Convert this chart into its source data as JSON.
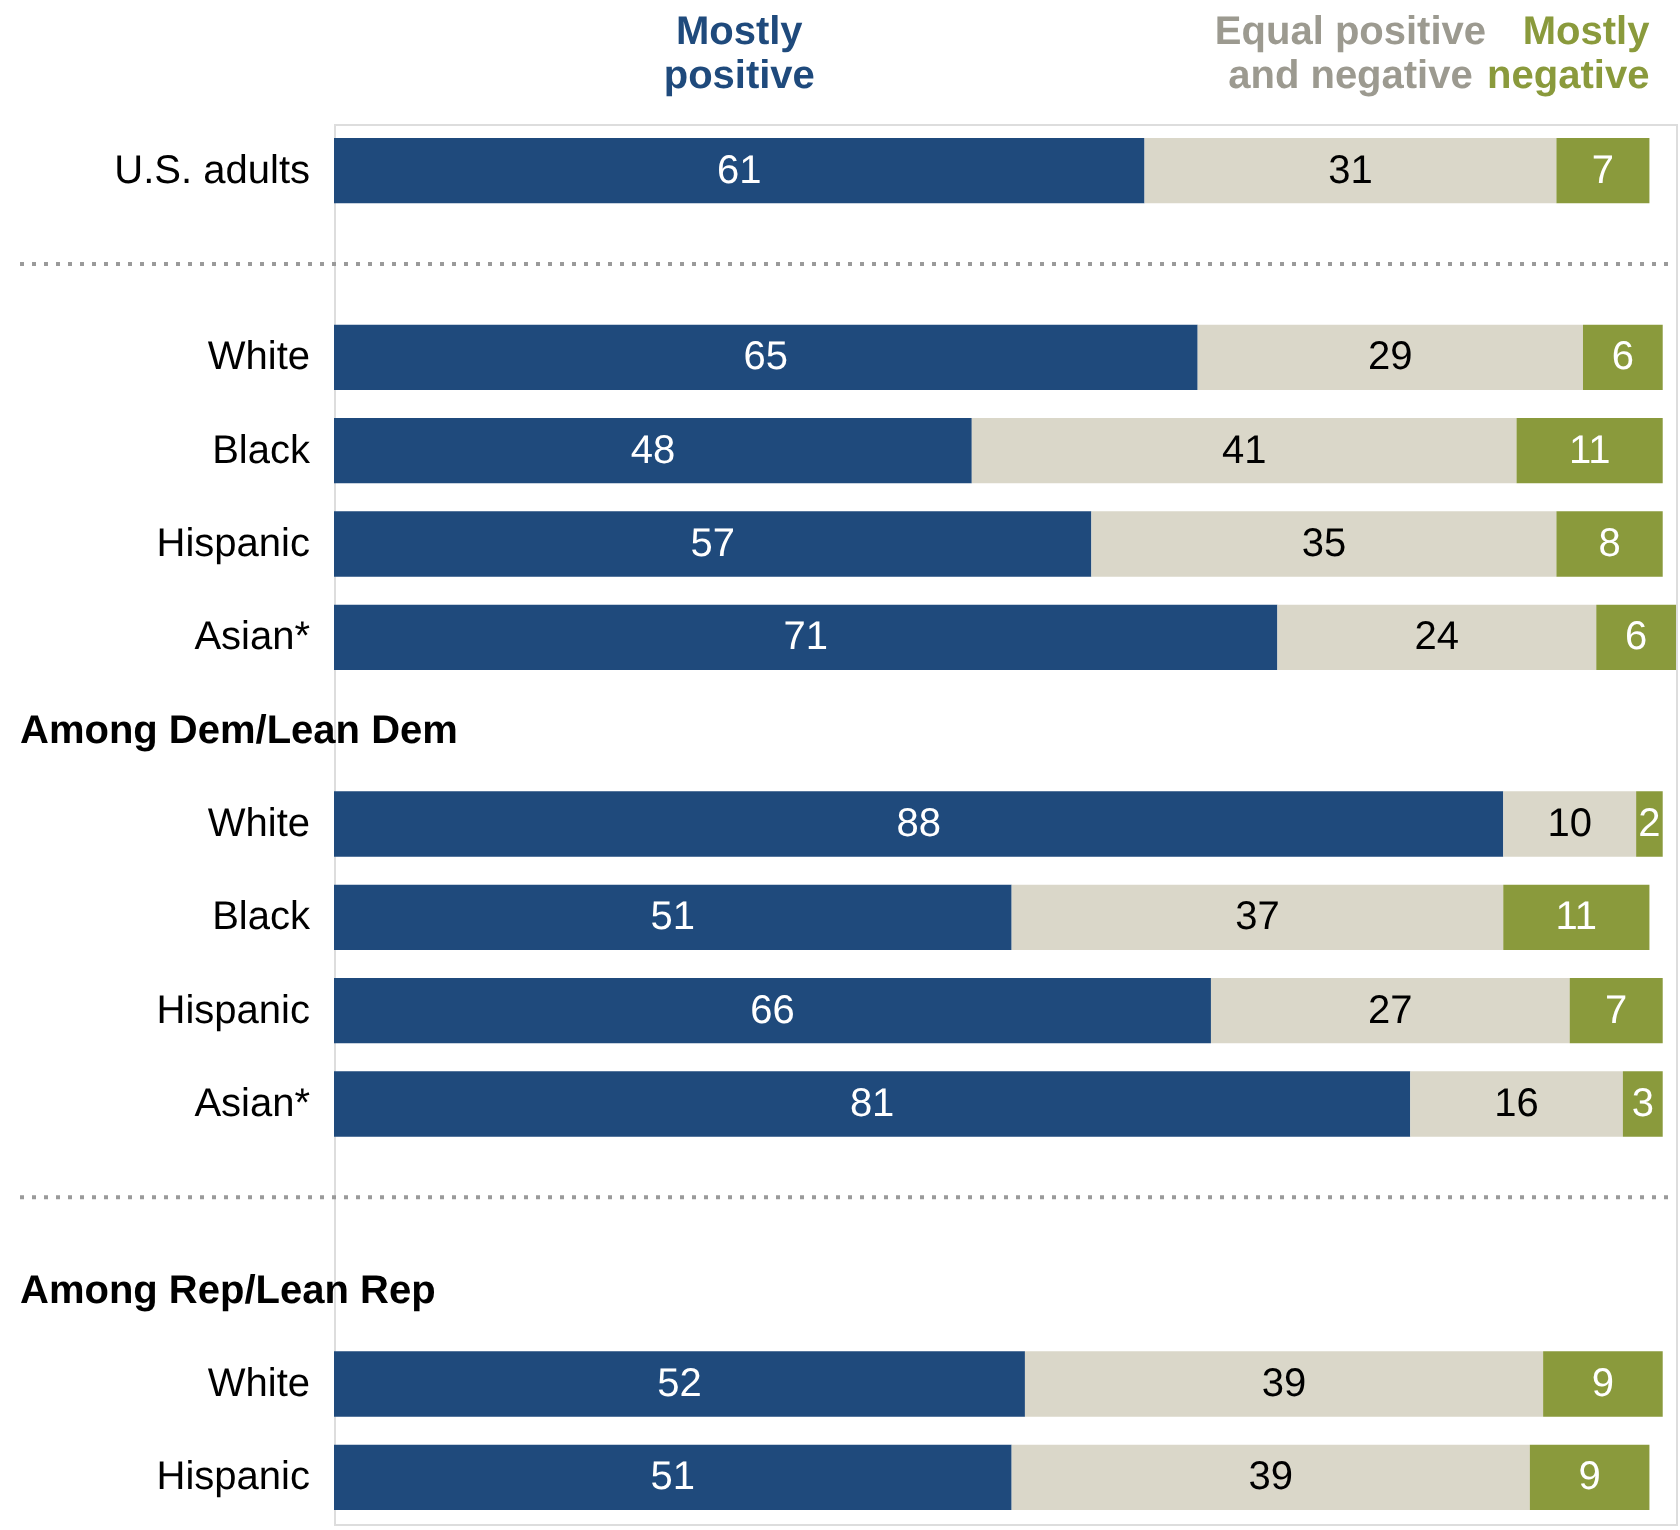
{
  "chart_data": {
    "type": "bar",
    "orientation": "horizontal",
    "stacked": true,
    "data_labels": true,
    "legend": "top",
    "categories": [
      "U.S. adults",
      null,
      "White",
      "Black",
      "Hispanic",
      "Asian*",
      "Among Dem/Lean Dem",
      "White",
      "Black",
      "Hispanic",
      "Asian*",
      null,
      "Among Rep/Lean Rep",
      "White",
      "Hispanic"
    ],
    "series": [
      {
        "name": "Mostly positive",
        "color": "#1f4a7c",
        "values": [
          61,
          null,
          65,
          48,
          57,
          71,
          null,
          88,
          51,
          66,
          81,
          null,
          null,
          52,
          51
        ]
      },
      {
        "name": "Equal positive and negative",
        "color": "#dad7c9",
        "values": [
          31,
          null,
          29,
          41,
          35,
          24,
          null,
          10,
          37,
          27,
          16,
          null,
          null,
          39,
          39
        ]
      },
      {
        "name": "Mostly negative",
        "color": "#8a9a3c",
        "values": [
          7,
          null,
          6,
          11,
          8,
          6,
          null,
          2,
          11,
          7,
          3,
          null,
          null,
          9,
          9
        ]
      }
    ]
  }
}
